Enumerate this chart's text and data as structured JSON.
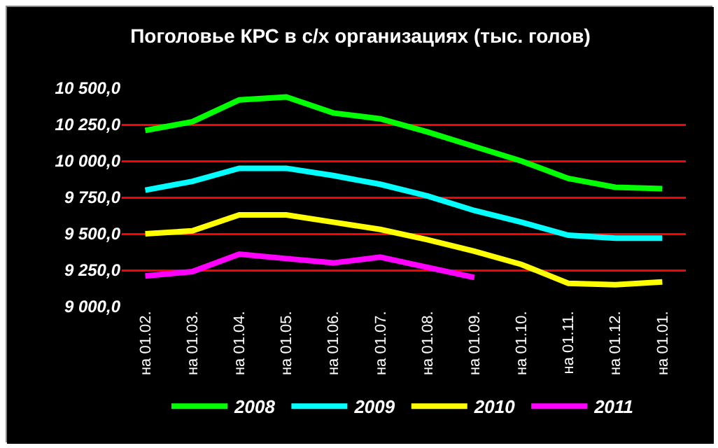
{
  "chart_data": {
    "type": "line",
    "title": "Поголовье КРС в с/х организациях (тыс. голов)",
    "categories": [
      "на 01.02.",
      "на 01.03.",
      "на 01.04.",
      "на 01.05.",
      "на 01.06.",
      "на 01.07.",
      "на 01.08.",
      "на 01.09.",
      "на 01.10.",
      "на 01.11.",
      "на 01.12.",
      "на 01.01."
    ],
    "series": [
      {
        "name": "2008",
        "color": "#00ff00",
        "values": [
          10210,
          10270,
          10420,
          10440,
          10330,
          10290,
          10200,
          10100,
          10000,
          9880,
          9820,
          9810
        ]
      },
      {
        "name": "2009",
        "color": "#00ffff",
        "values": [
          9800,
          9860,
          9950,
          9950,
          9900,
          9840,
          9760,
          9660,
          9580,
          9490,
          9470,
          9470
        ]
      },
      {
        "name": "2010",
        "color": "#ffff00",
        "values": [
          9500,
          9520,
          9630,
          9630,
          9580,
          9530,
          9460,
          9380,
          9290,
          9160,
          9150,
          9170
        ]
      },
      {
        "name": "2011",
        "color": "#ff00ff",
        "values": [
          9210,
          9240,
          9360,
          9330,
          9300,
          9340,
          9270,
          9200,
          null,
          null,
          null,
          null
        ]
      }
    ],
    "ylim": [
      9000,
      10500
    ],
    "yticks": [
      {
        "value": 9000,
        "label": "9 000,0"
      },
      {
        "value": 9250,
        "label": "9 250,0"
      },
      {
        "value": 9500,
        "label": "9 500,0"
      },
      {
        "value": 9750,
        "label": "9 750,0"
      },
      {
        "value": 10000,
        "label": "10 000,0"
      },
      {
        "value": 10250,
        "label": "10 250,0"
      },
      {
        "value": 10500,
        "label": "10 500,0"
      }
    ],
    "grid": "y",
    "legend": "bottom",
    "marker": "none",
    "line_style": "solid"
  }
}
